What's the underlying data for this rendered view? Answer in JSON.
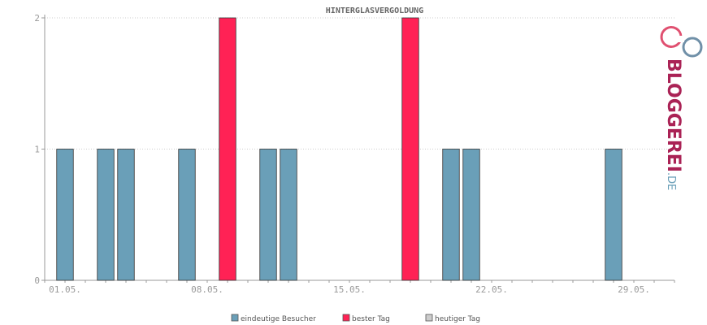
{
  "chart_data": {
    "type": "bar",
    "title": "HINTERGLASVERGOLDUNG",
    "x_tick_labels": [
      "01.05.",
      "08.05.",
      "15.05.",
      "22.05.",
      "29.05."
    ],
    "x_tick_days": [
      1,
      8,
      15,
      22,
      29
    ],
    "y_tick_labels": [
      "0",
      "1",
      "2"
    ],
    "ylim": [
      0,
      2
    ],
    "xlim_days": [
      0,
      31
    ],
    "grid": true,
    "legend_position": "bottom",
    "series": [
      {
        "name": "eindeutige Besucher",
        "color": "#6a9fb8",
        "points": [
          {
            "day": 1,
            "value": 1
          },
          {
            "day": 3,
            "value": 1
          },
          {
            "day": 4,
            "value": 1
          },
          {
            "day": 7,
            "value": 1
          },
          {
            "day": 11,
            "value": 1
          },
          {
            "day": 12,
            "value": 1
          },
          {
            "day": 20,
            "value": 1
          },
          {
            "day": 21,
            "value": 1
          },
          {
            "day": 28,
            "value": 1
          }
        ]
      },
      {
        "name": "bester Tag",
        "color": "#ff2255",
        "points": [
          {
            "day": 9,
            "value": 2
          },
          {
            "day": 18,
            "value": 2
          }
        ]
      },
      {
        "name": "heutiger Tag",
        "color": "#cccccc",
        "points": []
      }
    ]
  },
  "logo": {
    "text_main": "BLOGGEREI",
    "text_suffix": ".DE",
    "color_main": "#aa2255",
    "color_suffix": "#6a9fb8"
  }
}
